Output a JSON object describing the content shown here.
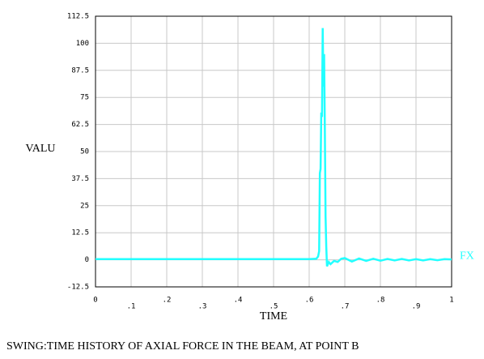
{
  "chart_data": {
    "type": "line",
    "title": "SWING:TIME HISTORY OF AXIAL FORCE IN THE BEAM, AT POINT B",
    "xlabel": "TIME",
    "ylabel": "VALU",
    "x": [
      0,
      0.1,
      0.2,
      0.3,
      0.4,
      0.5,
      0.6,
      0.62,
      0.625,
      0.628,
      0.63,
      0.632,
      0.634,
      0.636,
      0.638,
      0.64,
      0.642,
      0.644,
      0.646,
      0.648,
      0.65,
      0.655,
      0.66,
      0.67,
      0.68,
      0.69,
      0.7,
      0.72,
      0.74,
      0.76,
      0.78,
      0.8,
      0.82,
      0.84,
      0.86,
      0.88,
      0.9,
      0.92,
      0.94,
      0.96,
      0.98,
      1.0
    ],
    "series": [
      {
        "name": "FX",
        "color": "#22ffff",
        "values": [
          0.3,
          0.3,
          0.3,
          0.3,
          0.3,
          0.3,
          0.3,
          0.5,
          1.5,
          4,
          40,
          42,
          68,
          66,
          107,
          80,
          95,
          60,
          20,
          6,
          -3,
          -1,
          -2,
          -0.5,
          -1,
          0.5,
          0.8,
          -0.8,
          0.6,
          -0.5,
          0.5,
          -0.4,
          0.4,
          -0.3,
          0.4,
          -0.3,
          0.3,
          -0.3,
          0.3,
          -0.2,
          0.3,
          0.2
        ]
      }
    ],
    "xlim": [
      0,
      1
    ],
    "ylim": [
      -12.5,
      112.5
    ],
    "xticks": [
      0,
      {
        "value": 0.1,
        "label": ".1"
      },
      {
        "value": 0.2,
        "label": ".2"
      },
      {
        "value": 0.3,
        "label": ".3"
      },
      {
        "value": 0.4,
        "label": ".4"
      },
      {
        "value": 0.5,
        "label": ".5"
      },
      {
        "value": 0.6,
        "label": ".6"
      },
      {
        "value": 0.7,
        "label": ".7"
      },
      {
        "value": 0.8,
        "label": ".8"
      },
      {
        "value": 0.9,
        "label": ".9"
      },
      1
    ],
    "yticks": [
      -12.5,
      0,
      12.5,
      25,
      37.5,
      50,
      62.5,
      75,
      87.5,
      100,
      112.5
    ],
    "grid": true
  }
}
